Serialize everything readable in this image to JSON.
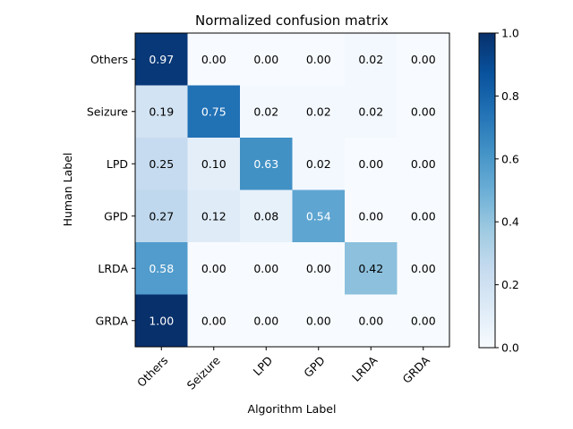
{
  "chart_data": {
    "type": "heatmap",
    "title": "Normalized confusion matrix",
    "xlabel": "Algorithm Label",
    "ylabel": "Human Label",
    "x_categories": [
      "Others",
      "Seizure",
      "LPD",
      "GPD",
      "LRDA",
      "GRDA"
    ],
    "y_categories": [
      "Others",
      "Seizure",
      "LPD",
      "GPD",
      "LRDA",
      "GRDA"
    ],
    "values": [
      [
        0.97,
        0.0,
        0.0,
        0.0,
        0.02,
        0.0
      ],
      [
        0.19,
        0.75,
        0.02,
        0.02,
        0.02,
        0.0
      ],
      [
        0.25,
        0.1,
        0.63,
        0.02,
        0.0,
        0.0
      ],
      [
        0.27,
        0.12,
        0.08,
        0.54,
        0.0,
        0.0
      ],
      [
        0.58,
        0.0,
        0.0,
        0.0,
        0.42,
        0.0
      ],
      [
        1.0,
        0.0,
        0.0,
        0.0,
        0.0,
        0.0
      ]
    ],
    "value_format": "0.00",
    "colormap": "Blues",
    "color_range": [
      0.0,
      1.0
    ],
    "colorbar_ticks": [
      "0.0",
      "0.2",
      "0.4",
      "0.6",
      "0.8",
      "1.0"
    ]
  }
}
